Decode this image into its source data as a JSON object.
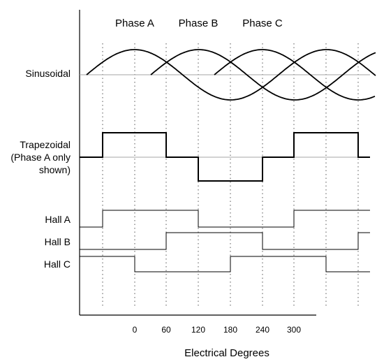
{
  "phase_labels": [
    "Phase A",
    "Phase B",
    "Phase C"
  ],
  "row_labels": {
    "sinusoidal": "Sinusoidal",
    "trapezoidal": [
      "Trapezoidal",
      "(Phase A only",
      "shown)"
    ],
    "hall_a": "Hall A",
    "hall_b": "Hall B",
    "hall_c": "Hall C"
  },
  "x_axis": {
    "title": "Electrical Degrees",
    "ticks": [
      "0",
      "60",
      "120",
      "180",
      "240",
      "300"
    ]
  },
  "colors": {
    "line": "#000000",
    "baseline": "#a6a6a6",
    "gridline": "#555555"
  }
}
